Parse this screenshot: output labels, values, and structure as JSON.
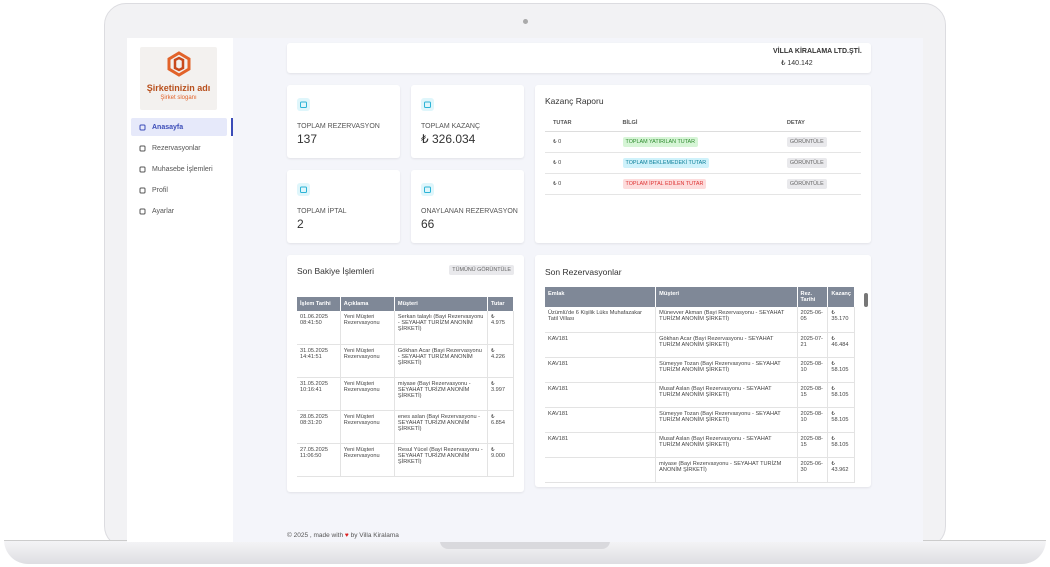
{
  "sidebar": {
    "brand": "Şirketinizin adı",
    "slogan": "Şirket sloganı",
    "nav": [
      "Anasayfa",
      "Rezervasyonlar",
      "Muhasebe İşlemleri",
      "Profil",
      "Ayarlar"
    ]
  },
  "topbar": {
    "company": "VİLLA KİRALAMA LTD.ŞTİ.",
    "balance": "₺ 140.142"
  },
  "stats": [
    {
      "label": "TOPLAM REZERVASYON",
      "value": 137
    },
    {
      "label": "TOPLAM KAZANÇ",
      "value": "₺ 326.034"
    },
    {
      "label": "TOPLAM İPTAL",
      "value": 2
    },
    {
      "label": "ONAYLANAN REZERVASYON",
      "value": 66
    }
  ],
  "report": {
    "title": "Kazanç Raporu",
    "headers": [
      "TUTAR",
      "BİLGİ",
      "DETAY"
    ],
    "rows": [
      {
        "amount": "₺ 0",
        "info": "TOPLAM YATIRILAN TUTAR",
        "action": "GÖRÜNTÜLE"
      },
      {
        "amount": "₺ 0",
        "info": "TOPLAM BEKLEMEDEKİ TUTAR",
        "action": "GÖRÜNTÜLE"
      },
      {
        "amount": "₺ 0",
        "info": "TOPLAM İPTAL EDİLEN TUTAR",
        "action": "GÖRÜNTÜLE"
      }
    ]
  },
  "balance": {
    "title": "Son Bakiye İşlemleri",
    "button": "TÜMÜNÜ GÖRÜNTÜLE",
    "headers": [
      "İşlem Tarihi",
      "Açıklama",
      "Müşteri",
      "Tutar"
    ],
    "rows": [
      [
        "01.06.2025 08:41:50",
        "Yeni Müşteri Rezervasyonu",
        "Serkan talaylı (Bayi Rezervasyonu - SEYAHAT TURİZM ANONİM ŞİRKETİ)",
        "₺ 4.975"
      ],
      [
        "31.05.2025 14:41:51",
        "Yeni Müşteri Rezervasyonu",
        "Gökhan Acar (Bayi Rezervasyonu - SEYAHAT TURİZM ANONİM ŞİRKETİ)",
        "₺ 4.226"
      ],
      [
        "31.05.2025 10:16:41",
        "Yeni Müşteri Rezervasyonu",
        "miyase (Bayi Rezervasyonu - SEYAHAT TURİZM ANONİM ŞİRKETİ)",
        "₺ 3.997"
      ],
      [
        "28.05.2025 08:31:20",
        "Yeni Müşteri Rezervasyonu",
        "enes aslan (Bayi Rezervasyonu - SEYAHAT TURİZM ANONİM ŞİRKETİ)",
        "₺ 6.854"
      ],
      [
        "27.05.2025 11:06:50",
        "Yeni Müşteri Rezervasyonu",
        "Resul Yücel (Bayi Rezervasyonu - SEYAHAT TURİZM ANONİM ŞİRKETİ)",
        "₺ 9.000"
      ]
    ]
  },
  "reservations": {
    "title": "Son Rezervasyonlar",
    "headers": [
      "Emlak",
      "Müşteri",
      "Rez. Tarihi",
      "Kazanç"
    ],
    "rows": [
      [
        "Üzümlü'de 6 Kişilik Lüks Muhafazakar Tatil Villası",
        "Münevver Akman (Bayi Rezervasyonu - SEYAHAT TURİZM ANONİM ŞİRKETİ)",
        "2025-06-05",
        "₺ 35.170"
      ],
      [
        "KAV181",
        "Gökhan Acar (Bayi Rezervasyonu - SEYAHAT TURİZM ANONİM ŞİRKETİ)",
        "2025-07-21",
        "₺ 46.484"
      ],
      [
        "KAV181",
        "Sümeyye Tozan (Bayi Rezervasyonu - SEYAHAT TURİZM ANONİM ŞİRKETİ)",
        "2025-08-10",
        "₺ 58.105"
      ],
      [
        "KAV181",
        "Musaf Aslan (Bayi Rezervasyonu - SEYAHAT TURİZM ANONİM ŞİRKETİ)",
        "2025-08-15",
        "₺ 58.105"
      ],
      [
        "KAV181",
        "Sümeyye Tozan (Bayi Rezervasyonu - SEYAHAT TURİZM ANONİM ŞİRKETİ)",
        "2025-08-10",
        "₺ 58.105"
      ],
      [
        "KAV181",
        "Musaf Aslan (Bayi Rezervasyonu - SEYAHAT TURİZM ANONİM ŞİRKETİ)",
        "2025-08-15",
        "₺ 58.105"
      ],
      [
        null,
        "miyase (Bayi Rezervasyonu - SEYAHAT TURİZM ANONİM ŞİRKETİ)",
        "2025-06-30",
        "₺ 43.962"
      ]
    ]
  },
  "footer": {
    "prefix": "© 2025 , made with",
    "suffix": "by Villa Kiralama"
  }
}
